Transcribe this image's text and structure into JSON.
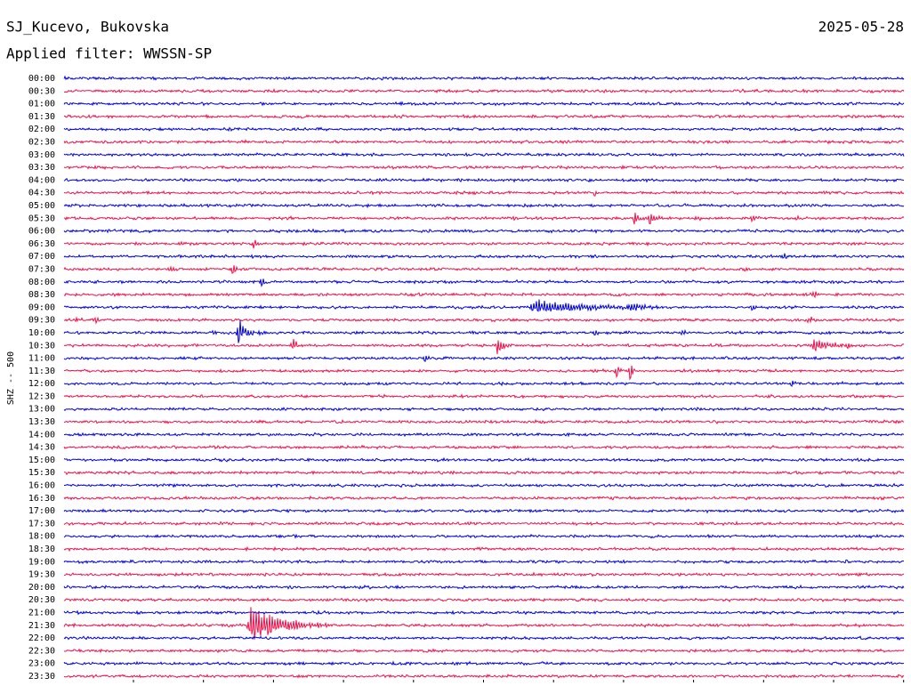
{
  "header": {
    "station": "SJ_Kucevo, Bukovska",
    "date": "2025-05-28",
    "filter": "Applied filter: WWSSN-SP"
  },
  "chart_data": {
    "type": "helicorder",
    "y_label": "SHZ -- 500",
    "categories": [
      "00:00",
      "00:30",
      "01:00",
      "01:30",
      "02:00",
      "02:30",
      "03:00",
      "03:30",
      "04:00",
      "04:30",
      "05:00",
      "05:30",
      "06:00",
      "06:30",
      "07:00",
      "07:30",
      "08:00",
      "08:30",
      "09:00",
      "09:30",
      "10:00",
      "10:30",
      "11:00",
      "11:30",
      "12:00",
      "12:30",
      "13:00",
      "13:30",
      "14:00",
      "14:30",
      "15:00",
      "15:30",
      "16:00",
      "16:30",
      "17:00",
      "17:30",
      "18:00",
      "18:30",
      "19:00",
      "19:30",
      "20:00",
      "20:30",
      "21:00",
      "21:30",
      "22:00",
      "22:30",
      "23:00",
      "23:30"
    ],
    "colors": [
      "#0000e0",
      "#f0104a"
    ]
  }
}
